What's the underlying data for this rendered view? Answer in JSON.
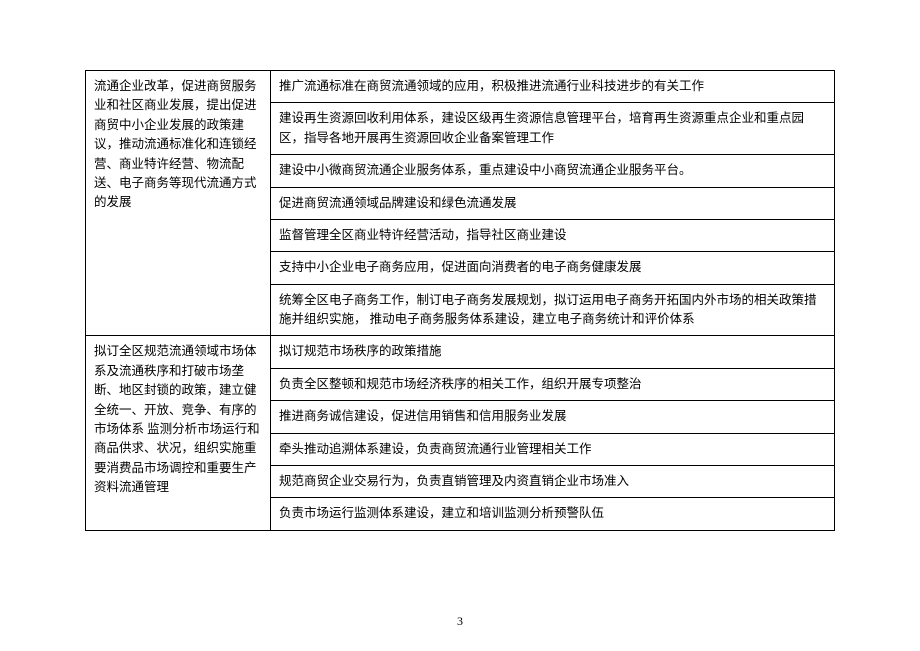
{
  "page_number": "3",
  "table": {
    "sections": [
      {
        "left": "流通企业改革，促进商贸服务业和社区商业发展，提出促进商贸中小企业发展的政策建议，推动流通标准化和连锁经营、商业特许经营、物流配送、电子商务等现代流通方式的发展",
        "rights": [
          "推广流通标准在商贸流通领域的应用，积极推进流通行业科技进步的有关工作",
          "建设再生资源回收利用体系，建设区级再生资源信息管理平台，培育再生资源重点企业和重点园区，指导各地开展再生资源回收企业备案管理工作",
          "建设中小微商贸流通企业服务体系，重点建设中小商贸流通企业服务平台。",
          "促进商贸流通领域品牌建设和绿色流通发展",
          "监督管理全区商业特许经营活动，指导社区商业建设",
          "支持中小企业电子商务应用，促进面向消费者的电子商务健康发展",
          "统筹全区电子商务工作，制订电子商务发展规划，拟订运用电子商务开拓国内外市场的相关政策措施并组织实施， 推动电子商务服务体系建设，建立电子商务统计和评价体系"
        ]
      },
      {
        "left": "拟订全区规范流通领域市场体系及流通秩序和打破市场垄断、地区封锁的政策，建立健全统一、开放、竞争、有序的市场体系 监测分析市场运行和商品供求、状况，组织实施重要消费品市场调控和重要生产资料流通管理",
        "rights": [
          "拟订规范市场秩序的政策措施",
          "负责全区整顿和规范市场经济秩序的相关工作，组织开展专项整治",
          "推进商务诚信建设，促进信用销售和信用服务业发展",
          "牵头推动追溯体系建设，负责商贸流通行业管理相关工作",
          "规范商贸企业交易行为，负责直销管理及内资直销企业市场准入",
          "负责市场运行监测体系建设，建立和培训监测分析预警队伍"
        ]
      }
    ]
  }
}
